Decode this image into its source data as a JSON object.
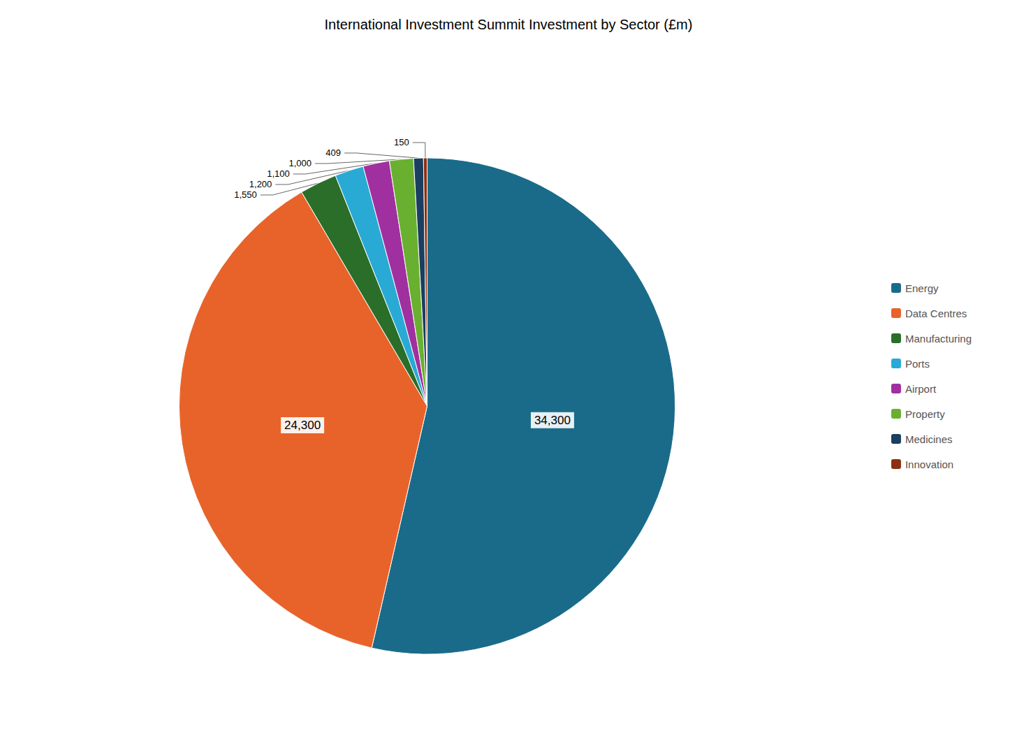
{
  "chart_data": {
    "type": "pie",
    "title": "International Investment Summit Investment by Sector (£m)",
    "categories": [
      "Energy",
      "Data Centres",
      "Manufacturing",
      "Ports",
      "Airport",
      "Property",
      "Medicines",
      "Innovation"
    ],
    "values": [
      34300,
      24300,
      1550,
      1200,
      1100,
      1000,
      409,
      150
    ],
    "value_labels": [
      "34,300",
      "24,300",
      "1,550",
      "1,200",
      "1,100",
      "1,000",
      "409",
      "150"
    ],
    "colors": [
      "#1a6b8a",
      "#e8632a",
      "#2a6e2a",
      "#29aad4",
      "#a030a0",
      "#6ab030",
      "#1a3f60",
      "#8b3010"
    ],
    "data_labels": true,
    "legend": "right"
  }
}
